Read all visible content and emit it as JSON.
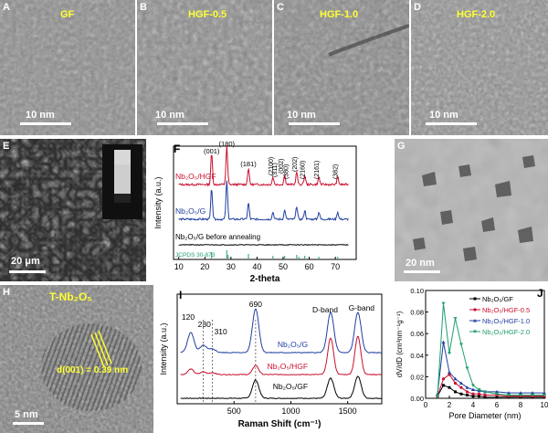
{
  "panels": {
    "A": {
      "letter": "A",
      "title": "GF",
      "scale": "10 nm"
    },
    "B": {
      "letter": "B",
      "title": "HGF-0.5",
      "scale": "10 nm"
    },
    "C": {
      "letter": "C",
      "title": "HGF-1.0",
      "scale": "10 nm"
    },
    "D": {
      "letter": "D",
      "title": "HGF-2.0",
      "scale": "10 nm"
    },
    "E": {
      "letter": "E",
      "scale": "20 μm"
    },
    "G": {
      "letter": "G",
      "scale": "20 nm"
    },
    "H": {
      "letter": "H",
      "title": "T-Nb₂O₅",
      "annotation": "d(001) = 0.39 nm",
      "scale": "5 nm"
    }
  },
  "colors": {
    "red": "#c8102e",
    "blue": "#1f3fa0",
    "black": "#000000",
    "green": "#1e9e6a",
    "yellow": "#ffff33"
  },
  "chart_data": [
    {
      "panel": "F",
      "type": "line",
      "xlabel": "2-theta",
      "ylabel": "Intensity (a.u.)",
      "xlim": [
        0,
        80
      ],
      "xticks": [
        "10",
        "20",
        "30",
        "40",
        "50",
        "60",
        "70",
        "80"
      ],
      "series": [
        {
          "name": "Nb2O5/HGF",
          "color": "#c8102e",
          "peaks": [
            22.6,
            28.4,
            36.7,
            46.1,
            50.6,
            55.2,
            58.3,
            63.7,
            70.9
          ]
        },
        {
          "name": "Nb2O5/G",
          "color": "#1f3fa0",
          "peaks": [
            22.6,
            28.4,
            36.7,
            46.1,
            50.6,
            55.2,
            58.3,
            63.7,
            70.9
          ]
        },
        {
          "name": "Nb2O5/G before annealing",
          "color": "#000000",
          "peaks": []
        },
        {
          "name": "JCPDS 30-873",
          "color": "#1e9e6a",
          "sticks": [
            22.6,
            28.4,
            28.9,
            36.7,
            46.1,
            50.6,
            55.2,
            56.0,
            58.3,
            63.7,
            70.9
          ]
        }
      ],
      "annotations": [
        "(001)",
        "(180)",
        "(181)",
        "(2100)",
        "(311)",
        "(002)",
        "(380)",
        "(202)",
        "(2160)",
        "(2161)",
        "(382)"
      ]
    },
    {
      "panel": "I",
      "type": "line",
      "xlabel": "Raman Shift (cm⁻¹)",
      "ylabel": "Intensity (a.u.)",
      "xlim": [
        0,
        1800
      ],
      "xticks": [
        "500",
        "1000",
        "1500"
      ],
      "peak_labels": [
        "120",
        "230",
        "310",
        "690",
        "D-band",
        "G-band"
      ],
      "series": [
        {
          "name": "Nb2O5/G",
          "color": "#1f3fa0",
          "peaks": [
            120,
            230,
            310,
            690,
            1350,
            1590
          ]
        },
        {
          "name": "Nb2O5/HGF",
          "color": "#c8102e",
          "peaks": [
            120,
            230,
            310,
            690,
            1350,
            1590
          ]
        },
        {
          "name": "Nb2O5/GF",
          "color": "#000000",
          "peaks": [
            690,
            1350,
            1590
          ]
        }
      ]
    },
    {
      "panel": "J",
      "type": "line",
      "xlabel": "Pore Diameter (nm)",
      "ylabel": "dV/dD (cm³nm⁻¹g⁻¹)",
      "xlim": [
        0,
        10
      ],
      "ylim": [
        0,
        0.1
      ],
      "xticks": [
        "0",
        "2",
        "4",
        "6",
        "8",
        "10"
      ],
      "yticks": [
        "0.00",
        "0.02",
        "0.04",
        "0.06",
        "0.08",
        "0.10"
      ],
      "x": [
        1.0,
        1.5,
        2.0,
        2.5,
        3.0,
        3.5,
        4.0,
        4.5,
        5.0,
        6.0,
        7.0,
        8.0,
        9.0,
        10.0
      ],
      "series": [
        {
          "name": "Nb2O5/GF",
          "color": "#000000",
          "marker": "square",
          "values": [
            0.002,
            0.012,
            0.01,
            0.006,
            0.004,
            0.003,
            0.002,
            0.002,
            0.001,
            0.001,
            0.001,
            0.001,
            0.001,
            0.001
          ]
        },
        {
          "name": "Nb2O5/HGF-0.5",
          "color": "#c8102e",
          "marker": "circle",
          "values": [
            0.002,
            0.018,
            0.022,
            0.014,
            0.01,
            0.006,
            0.004,
            0.004,
            0.003,
            0.003,
            0.002,
            0.002,
            0.002,
            0.002
          ]
        },
        {
          "name": "Nb2O5/HGF-1.0",
          "color": "#1f3fa0",
          "marker": "triangle-up",
          "values": [
            0.004,
            0.052,
            0.024,
            0.018,
            0.014,
            0.01,
            0.008,
            0.007,
            0.006,
            0.006,
            0.005,
            0.005,
            0.005,
            0.005
          ]
        },
        {
          "name": "Nb2O5/HGF-2.0",
          "color": "#1e9e6a",
          "marker": "triangle-down",
          "values": [
            0.002,
            0.088,
            0.042,
            0.074,
            0.05,
            0.028,
            0.012,
            0.008,
            0.006,
            0.004,
            0.003,
            0.003,
            0.003,
            0.003
          ]
        }
      ]
    }
  ],
  "labels": {
    "F": {
      "letter": "F",
      "s1": "Nb₂O₅/HGF",
      "s2": "Nb₂O₅/G",
      "s3": "Nb₂O₅/G before annealing",
      "s4": "JCPDS 30-873"
    },
    "I": {
      "letter": "I",
      "s1": "Nb₂O₅/G",
      "s2": "Nb₂O₅/HGF",
      "s3": "Nb₂O₅/GF"
    },
    "J": {
      "letter": "J",
      "s1": "Nb₂O₅/GF",
      "s2": "Nb₂O₅/HGF-0.5",
      "s3": "Nb₂O₅/HGF-1.0",
      "s4": "Nb₂O₅/HGF-2.0"
    }
  }
}
